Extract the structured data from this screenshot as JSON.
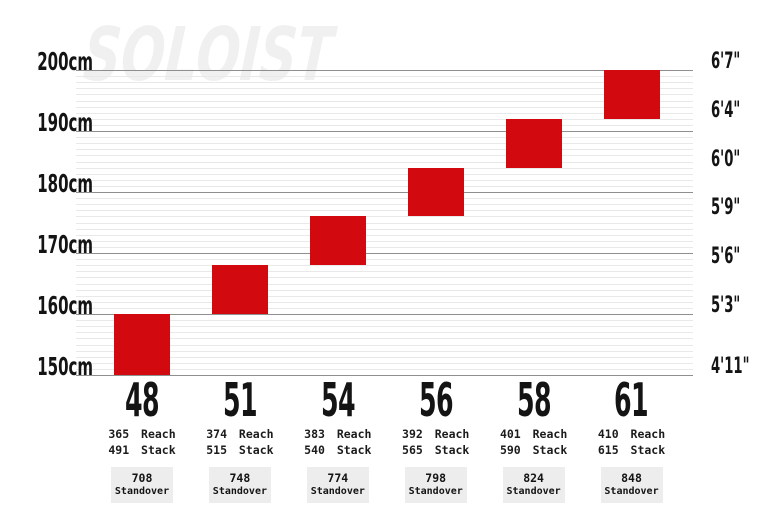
{
  "watermark": "SOLOIST",
  "colors": {
    "bar_red": "#d20a10",
    "major_gridline": "#8f8f8f",
    "minor_gridline": "#e9e9e9",
    "standover_box_bg": "#ededed",
    "text": "#141414",
    "watermark": "#f0f0f0",
    "background": "#ffffff"
  },
  "chart_data": {
    "type": "bar",
    "subtype": "vertical-floating-range",
    "title": "SOLOIST",
    "categories": [
      "48",
      "51",
      "54",
      "56",
      "58",
      "61"
    ],
    "series": [
      {
        "name": "rider-height-range-cm",
        "ranges": [
          [
            150,
            160
          ],
          [
            160,
            168
          ],
          [
            168,
            176
          ],
          [
            176,
            184
          ],
          [
            184,
            192
          ],
          [
            192,
            200
          ]
        ]
      }
    ],
    "y_axis_left": {
      "unit": "cm",
      "min": 150,
      "max": 200,
      "tick_labels": [
        "200cm",
        "190cm",
        "180cm",
        "170cm",
        "160cm",
        "150cm"
      ],
      "tick_values": [
        200,
        190,
        180,
        170,
        160,
        150
      ]
    },
    "y_axis_right": {
      "unit": "feet-inches",
      "ticks": [
        {
          "label": "6'7\"",
          "cm": 200
        },
        {
          "label": "6'4\"",
          "cm": 192
        },
        {
          "label": "6'0\"",
          "cm": 184
        },
        {
          "label": "5'9\"",
          "cm": 176
        },
        {
          "label": "5'6\"",
          "cm": 168
        },
        {
          "label": "5'3\"",
          "cm": 160
        },
        {
          "label": "4'11\"",
          "cm": 150
        }
      ]
    },
    "grid": {
      "major_every_cm": 10,
      "minor_every_cm": 1,
      "legend": "none"
    }
  },
  "sizes": [
    {
      "size": "48",
      "min_cm": 150,
      "max_cm": 160,
      "reach": "365",
      "stack": "491",
      "standover": "708"
    },
    {
      "size": "51",
      "min_cm": 160,
      "max_cm": 168,
      "reach": "374",
      "stack": "515",
      "standover": "748"
    },
    {
      "size": "54",
      "min_cm": 168,
      "max_cm": 176,
      "reach": "383",
      "stack": "540",
      "standover": "774"
    },
    {
      "size": "56",
      "min_cm": 176,
      "max_cm": 184,
      "reach": "392",
      "stack": "565",
      "standover": "798"
    },
    {
      "size": "58",
      "min_cm": 184,
      "max_cm": 192,
      "reach": "401",
      "stack": "590",
      "standover": "824"
    },
    {
      "size": "61",
      "min_cm": 192,
      "max_cm": 200,
      "reach": "410",
      "stack": "615",
      "standover": "848"
    }
  ],
  "labels": {
    "reach_suffix": "Reach",
    "stack_suffix": "Stack",
    "standover_word": "Standover"
  }
}
